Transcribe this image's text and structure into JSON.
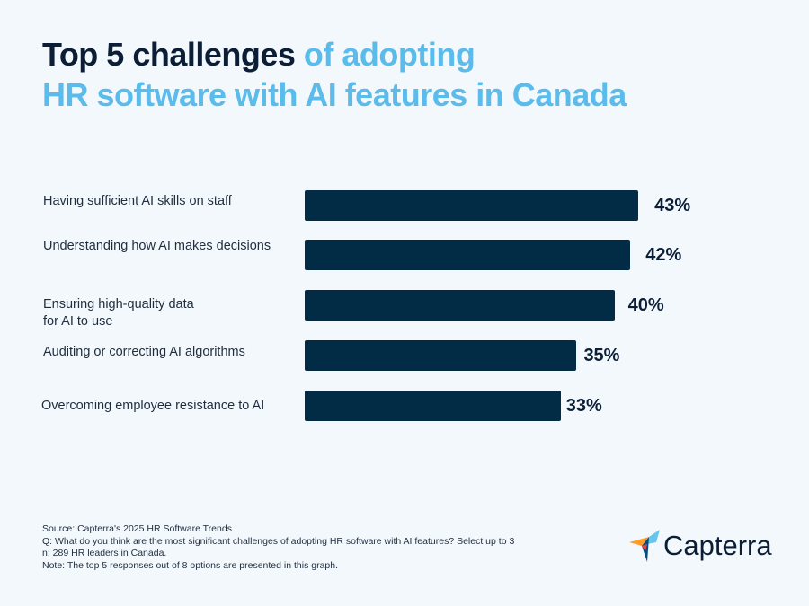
{
  "title": {
    "part1": "Top 5 challenges",
    "part2": " of adopting",
    "line2": "HR software with AI features in Canada"
  },
  "colors": {
    "bar": "#022c45",
    "title_dark": "#0b1e36",
    "title_blue": "#5bbbea",
    "background": "#f3f8fd"
  },
  "chart_data": {
    "type": "bar",
    "orientation": "horizontal",
    "categories": [
      "Having sufficient AI skills on staff",
      "Understanding how AI makes decisions",
      "Ensuring high-quality data\nfor AI to use",
      "Auditing or correcting AI algorithms",
      "Overcoming employee resistance to AI"
    ],
    "values": [
      43,
      42,
      40,
      35,
      33
    ],
    "labels": [
      "43%",
      "42%",
      "40%",
      "35%",
      "33%"
    ],
    "unit": "%",
    "grid": false
  },
  "footer": {
    "source": "Source: Capterra's 2025 HR Software Trends",
    "question": "Q: What do you think are the most significant challenges of adopting HR software with AI features? Select up to 3",
    "n": "n: 289 HR leaders in Canada.",
    "note": "Note: The top 5 responses out of 8 options are presented in this graph."
  },
  "logo": {
    "text": "Capterra"
  }
}
